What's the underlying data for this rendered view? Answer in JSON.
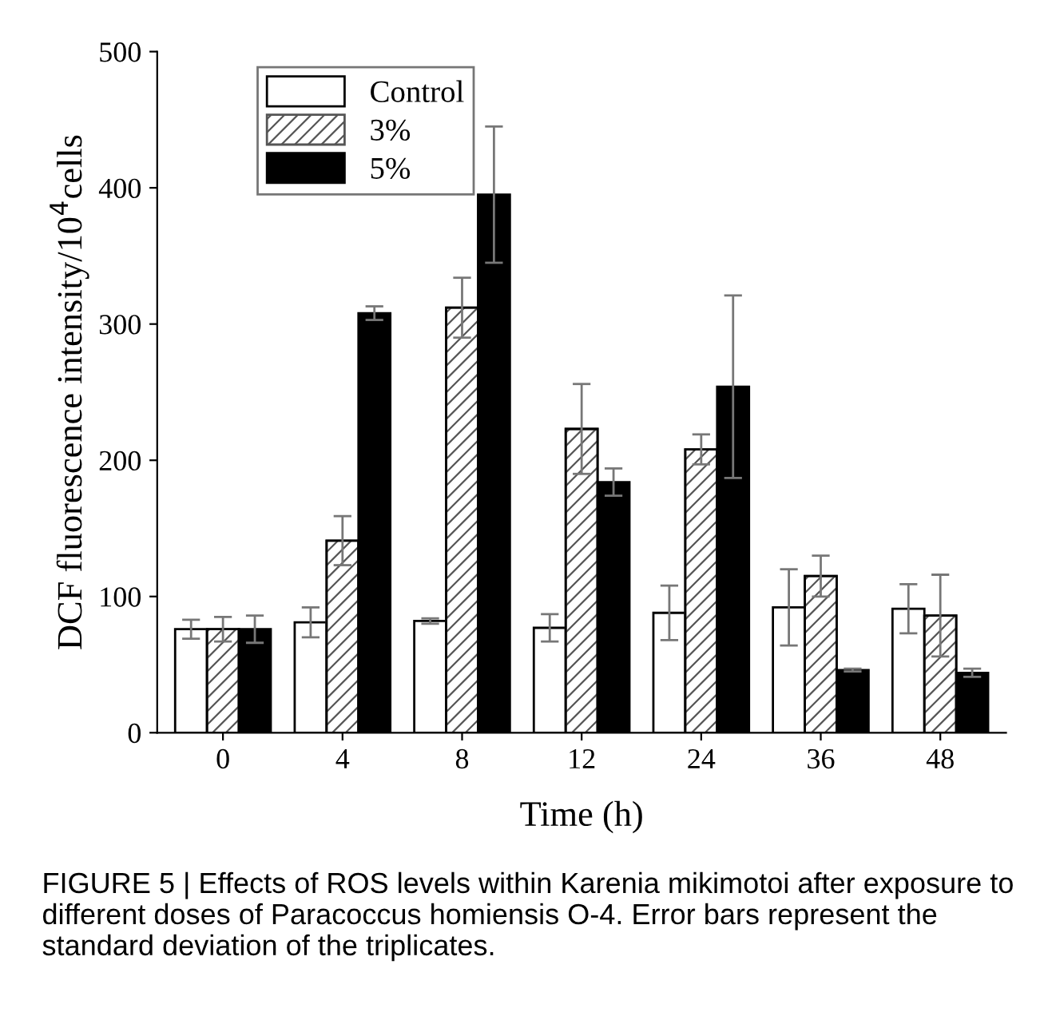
{
  "chart_data": {
    "type": "bar",
    "xlabel": "Time (h)",
    "ylabel": "DCF fluorescence intensity/10$^{4}$cells",
    "categories": [
      "0",
      "4",
      "8",
      "12",
      "24",
      "36",
      "48"
    ],
    "series": [
      {
        "name": "Control",
        "color": "#ffffff",
        "values": [
          76,
          81,
          82,
          77,
          88,
          92,
          91
        ],
        "errors": [
          7,
          11,
          2,
          10,
          20,
          28,
          18
        ]
      },
      {
        "name": "3%",
        "color": "#555555",
        "values": [
          76,
          141,
          312,
          223,
          208,
          115,
          86
        ],
        "errors": [
          9,
          18,
          22,
          33,
          11,
          15,
          30
        ]
      },
      {
        "name": "5%",
        "color": "#000000",
        "values": [
          76,
          308,
          395,
          184,
          254,
          46,
          44
        ],
        "errors": [
          10,
          5,
          50,
          10,
          67,
          1,
          3
        ]
      }
    ],
    "ylim": [
      0,
      500
    ],
    "yticks": [
      0,
      100,
      200,
      300,
      400,
      500
    ],
    "grid": false,
    "legend": "top left",
    "annotations": [
      "FIGURE 5 | Effects of ROS levels within Karenia mikimotoi after exposure to different doses of Paracoccus homiensis O-4. Error bars represent the standard deviation of the triplicates."
    ]
  }
}
